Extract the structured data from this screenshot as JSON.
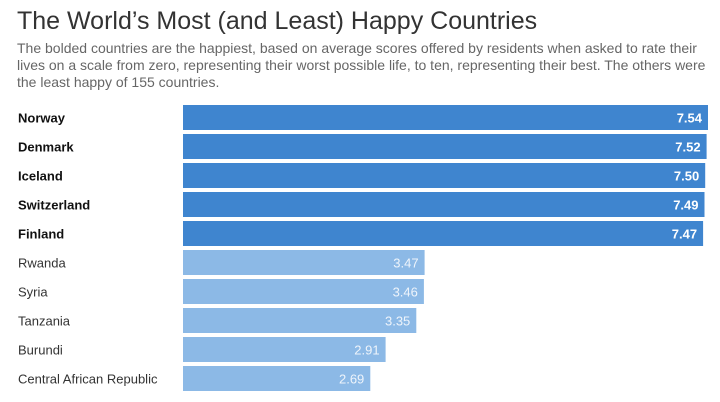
{
  "chart_data": {
    "type": "bar",
    "orientation": "horizontal",
    "title": "The World’s Most (and Least) Happy Countries",
    "subtitle": "The bolded countries are the happiest, based on average scores offered by residents when asked to rate their lives on a scale from zero, representing their worst possible life, to ten, representing their best. The others were the least happy of 155 countries.",
    "categories": [
      "Norway",
      "Denmark",
      "Iceland",
      "Switzerland",
      "Finland",
      "Rwanda",
      "Syria",
      "Tanzania",
      "Burundi",
      "Central African Republic"
    ],
    "values": [
      7.54,
      7.52,
      7.5,
      7.49,
      7.47,
      3.47,
      3.46,
      3.35,
      2.91,
      2.69
    ],
    "value_labels": [
      "7.54",
      "7.52",
      "7.50",
      "7.49",
      "7.47",
      "3.47",
      "3.46",
      "3.35",
      "2.91",
      "2.69"
    ],
    "groups": [
      "happiest",
      "happiest",
      "happiest",
      "happiest",
      "happiest",
      "least",
      "least",
      "least",
      "least",
      "least"
    ],
    "colors": {
      "happiest": "#3f85cf",
      "least": "#8cb9e6"
    },
    "xlim": [
      0,
      7.54
    ],
    "grid": false,
    "legend": "none"
  }
}
